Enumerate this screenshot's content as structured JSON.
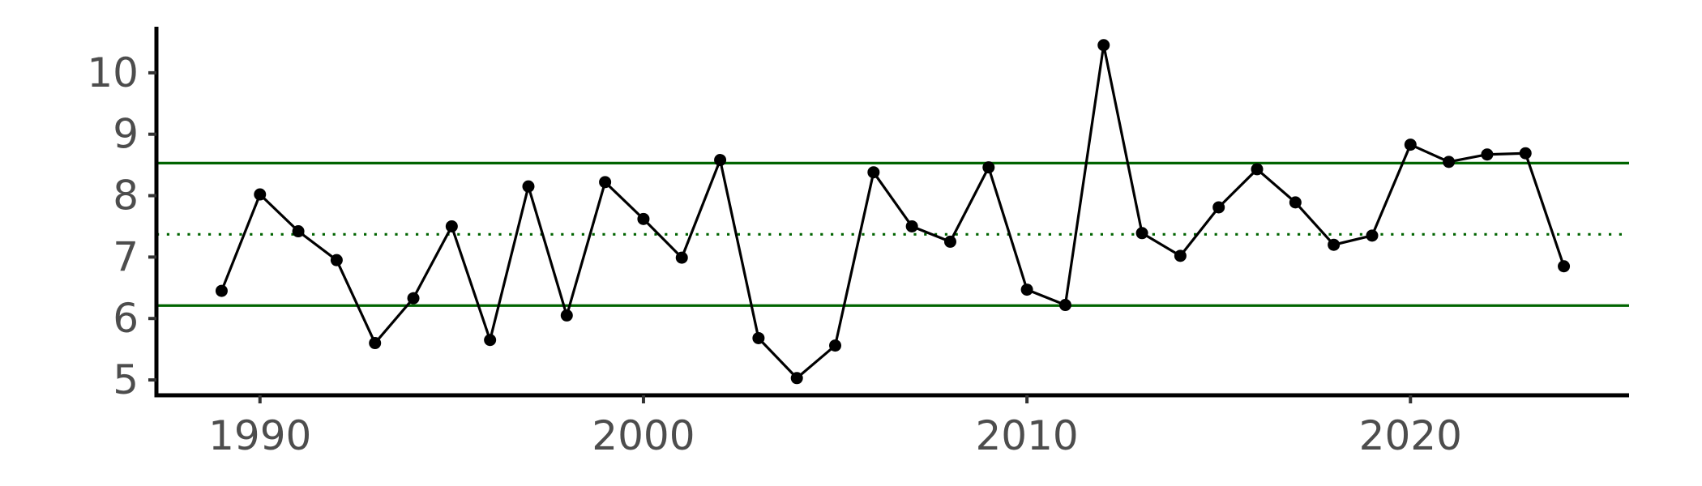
{
  "chart_data": {
    "type": "line",
    "title": "",
    "xlabel": "",
    "ylabel": "",
    "xlim": [
      1987.3,
      2025.7
    ],
    "ylim": [
      4.75,
      10.75
    ],
    "x_ticks": [
      1990,
      2000,
      2010,
      2020
    ],
    "y_ticks": [
      5,
      6,
      7,
      8,
      9,
      10
    ],
    "grid": false,
    "legend": "none",
    "series": [
      {
        "color": "#000000",
        "markers": true,
        "x": [
          1989,
          1990,
          1991,
          1992,
          1993,
          1994,
          1995,
          1996,
          1997,
          1998,
          1999,
          2000,
          2001,
          2002,
          2003,
          2004,
          2005,
          2006,
          2007,
          2008,
          2009,
          2010,
          2011,
          2012,
          2013,
          2014,
          2015,
          2016,
          2017,
          2018,
          2019,
          2020,
          2021,
          2022,
          2023,
          2024
        ],
        "y": [
          6.45,
          8.02,
          7.42,
          6.95,
          5.6,
          6.33,
          7.5,
          5.65,
          8.15,
          6.05,
          8.22,
          7.62,
          6.99,
          8.58,
          5.68,
          5.03,
          5.56,
          8.38,
          7.5,
          7.25,
          8.46,
          6.47,
          6.22,
          10.45,
          7.39,
          7.02,
          7.81,
          8.43,
          7.89,
          7.2,
          7.35,
          8.83,
          8.55,
          8.67,
          8.69,
          6.85
        ]
      }
    ],
    "reference_lines": [
      {
        "type": "upper-limit",
        "value": 8.53,
        "style": "solid",
        "color": "#006400"
      },
      {
        "type": "mean",
        "value": 7.37,
        "style": "dotted",
        "color": "#006400"
      },
      {
        "type": "lower-limit",
        "value": 6.21,
        "style": "solid",
        "color": "#006400"
      }
    ]
  }
}
